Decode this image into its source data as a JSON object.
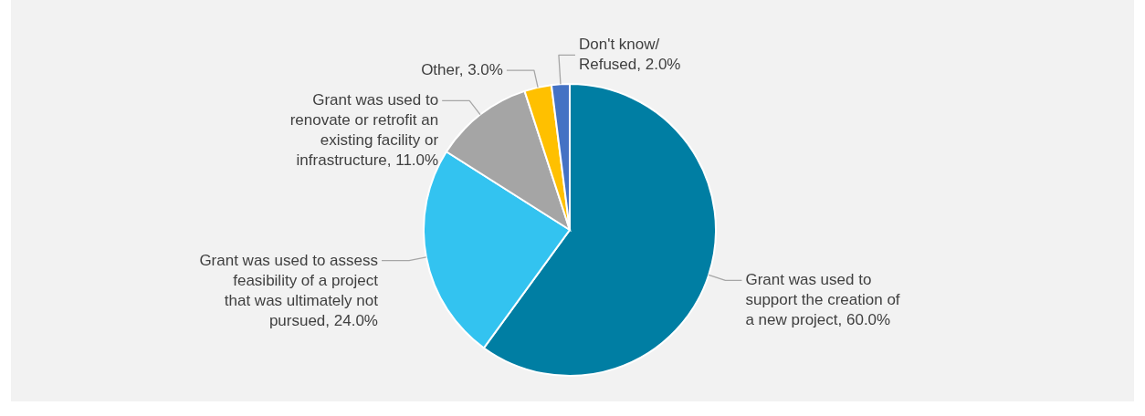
{
  "chart_data": {
    "type": "pie",
    "categories": [
      "Grant was used to support the creation of a new project",
      "Grant was used to assess feasibility of a project that was ultimately not pursued",
      "Grant was used to renovate or retrofit an existing facility or infrastructure",
      "Other",
      "Don't know/Refused"
    ],
    "values": [
      60,
      24,
      11,
      3,
      2
    ],
    "colors": [
      "#007ea3",
      "#33c3f0",
      "#a5a5a5",
      "#ffc000",
      "#4472c4"
    ],
    "value_labels": [
      "60.0%",
      "24.0%",
      "11.0%",
      "3.0%",
      "2.0%"
    ]
  }
}
